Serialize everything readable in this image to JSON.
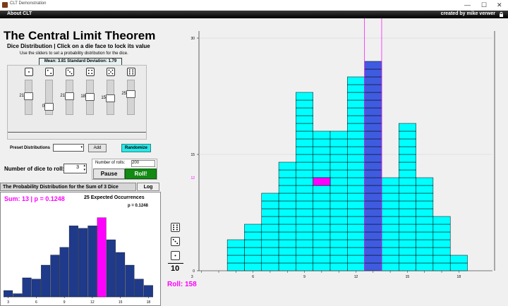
{
  "window": {
    "title": "CLT Demonstration",
    "controls": [
      "—",
      "☐",
      "✕"
    ]
  },
  "menu": {
    "about": "About CLT",
    "credit": "created by mike verwer"
  },
  "title": "The Central Limit Theorem",
  "dice_distribution": {
    "header": "Dice Distribution  |  Click on a die face to lock its value",
    "instructions": "Use the sliders to set a probability distribution for the dice.",
    "stats": "Mean: 3.81  Standard Deviation: 1.79",
    "faces": [
      1,
      2,
      3,
      4,
      5,
      6
    ],
    "slider_values": [
      21,
      0,
      21,
      18,
      15,
      25
    ],
    "slider_levels": [
      0.55,
      0.18,
      0.55,
      0.52,
      0.48,
      0.62
    ]
  },
  "preset": {
    "label": "Preset Distributions",
    "value": "",
    "add_label": "Add",
    "randomize_label": "Randomize"
  },
  "dice_count": {
    "label": "Number of dice to roll:",
    "value": "3"
  },
  "rolls": {
    "label": "Number of rolls:",
    "value": "200",
    "pause_label": "Pause",
    "roll_label": "Roll!"
  },
  "tabs": {
    "prob_label": "The Probability Distribution for the Sum of 3 Dice",
    "log_label": "Log"
  },
  "dist_panel": {
    "sum_label": "Sum: 13  |  p = 0.1248",
    "expected_label": "25 Expected Occurrences",
    "p_label": "p = 0.1248",
    "highlight_color": "#ff00ff",
    "bar_color": "#1f3a8a"
  },
  "side": {
    "count": "10",
    "roll_label": "Roll: 158",
    "faces": [
      6,
      3,
      1
    ]
  },
  "chart_data": [
    {
      "type": "bar",
      "categories": [
        3,
        4,
        5,
        6,
        7,
        8,
        9,
        10,
        11,
        12,
        13,
        14,
        15,
        16,
        17,
        18
      ],
      "values": [
        0.01,
        0.005,
        0.03,
        0.028,
        0.05,
        0.066,
        0.078,
        0.112,
        0.108,
        0.112,
        0.1248,
        0.09,
        0.07,
        0.05,
        0.028,
        0.018
      ],
      "highlight_category": 13,
      "xticks": [
        "3",
        "6",
        "9",
        "12",
        "15",
        "18"
      ],
      "ylim": [
        0,
        0.14
      ]
    },
    {
      "type": "bar",
      "categories": [
        3,
        4,
        5,
        6,
        7,
        8,
        9,
        10,
        11,
        12,
        13,
        14,
        15,
        16,
        17,
        18
      ],
      "values": [
        0,
        0,
        4,
        6,
        10,
        14,
        23,
        18,
        18,
        25,
        27,
        12,
        19,
        12,
        7,
        2
      ],
      "highlight_category": 13,
      "falling_category": 10,
      "falling_level": 12,
      "guide_value": 12,
      "yticks": [
        "0",
        "15",
        "30"
      ],
      "xticks": [
        "3",
        "6",
        "9",
        "12",
        "15",
        "18"
      ],
      "ylim": [
        0,
        30
      ],
      "xlim": [
        3,
        18
      ],
      "bar_color": "#00ffff",
      "highlight_color": "#3f5ce0",
      "guide_color": "#ff00ff"
    }
  ]
}
